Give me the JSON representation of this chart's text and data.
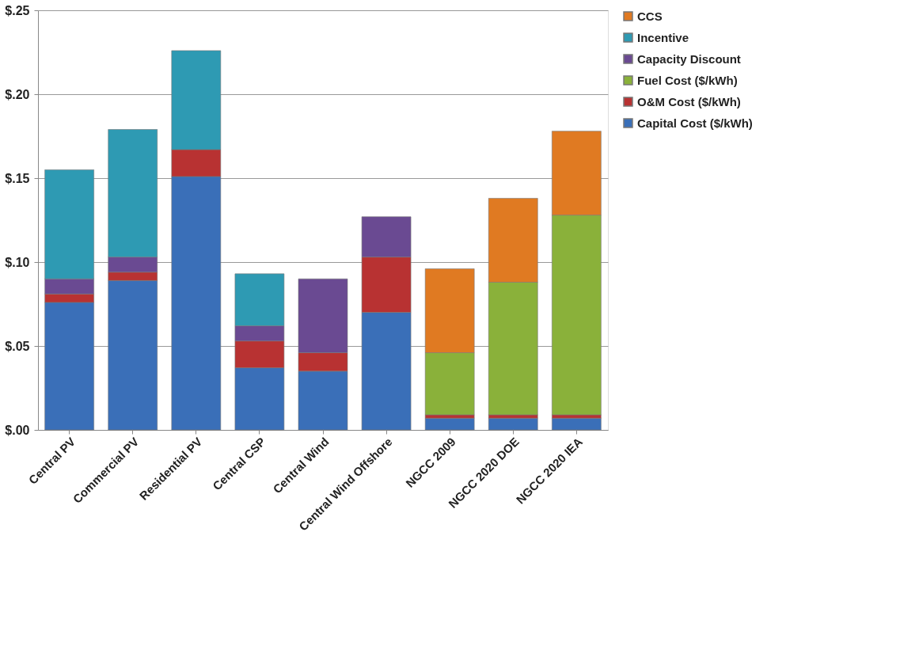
{
  "chart_data": {
    "type": "bar",
    "stacked": true,
    "categories": [
      "Central PV",
      "Commercial PV",
      "Residential PV",
      "Central CSP",
      "Central Wind",
      "Central Wind Offshore",
      "NGCC 2009",
      "NGCC 2020 DOE",
      "NGCC 2020 IEA"
    ],
    "series": [
      {
        "name": "Capital Cost   ($/kWh)",
        "color": "#3a6fb8",
        "values": [
          0.076,
          0.089,
          0.151,
          0.037,
          0.035,
          0.07,
          0.007,
          0.007,
          0.007
        ]
      },
      {
        "name": "O&M Cost   ($/kWh)",
        "color": "#b83232",
        "values": [
          0.005,
          0.005,
          0.016,
          0.016,
          0.011,
          0.033,
          0.002,
          0.002,
          0.002
        ]
      },
      {
        "name": "Fuel Cost   ($/kWh)",
        "color": "#8ab13a",
        "values": [
          null,
          null,
          null,
          null,
          null,
          null,
          0.037,
          0.079,
          0.119
        ]
      },
      {
        "name": "Capacity Discount",
        "color": "#6a4a92",
        "values": [
          0.009,
          0.009,
          null,
          0.009,
          0.044,
          0.024,
          null,
          null,
          null
        ]
      },
      {
        "name": "Incentive",
        "color": "#2e9ab3",
        "values": [
          0.065,
          0.076,
          0.059,
          0.031,
          null,
          null,
          null,
          null,
          null
        ]
      },
      {
        "name": "CCS",
        "color": "#e07a22",
        "values": [
          null,
          null,
          null,
          null,
          null,
          null,
          0.05,
          0.05,
          0.05
        ]
      }
    ],
    "ylim": [
      0,
      0.25
    ],
    "yticks": [
      {
        "value": 0,
        "label": "$.00"
      },
      {
        "value": 0.05,
        "label": "$.05"
      },
      {
        "value": 0.1,
        "label": "$.10"
      },
      {
        "value": 0.15,
        "label": "$.15"
      },
      {
        "value": 0.2,
        "label": "$.20"
      },
      {
        "value": 0.25,
        "label": "$.25"
      }
    ],
    "grid": "y",
    "legend": "right"
  }
}
